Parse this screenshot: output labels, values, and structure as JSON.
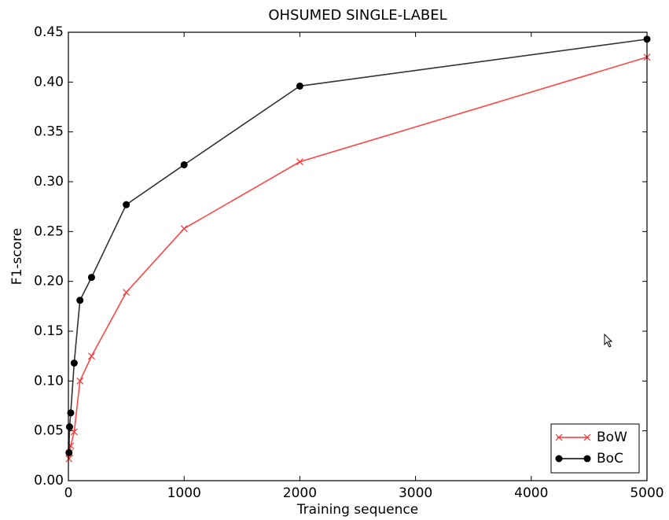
{
  "chart_data": {
    "type": "line",
    "title": "OHSUMED SINGLE-LABEL",
    "x_label": "Training sequence",
    "y_label": "F1-score",
    "x": [
      5,
      10,
      20,
      50,
      100,
      200,
      500,
      1000,
      2000,
      5000
    ],
    "series": [
      {
        "name": "BoW",
        "color": "#ff3333",
        "marker": "x",
        "values": [
          0.022,
          0.028,
          0.035,
          0.049,
          0.1,
          0.125,
          0.189,
          0.253,
          0.32,
          0.425
        ]
      },
      {
        "name": "BoC",
        "color": "#000000",
        "marker": "o",
        "values": [
          0.028,
          0.054,
          0.068,
          0.118,
          0.181,
          0.204,
          0.277,
          0.317,
          0.396,
          0.443
        ]
      }
    ],
    "xlim": [
      0,
      5000
    ],
    "xticks": [
      0,
      1000,
      2000,
      3000,
      4000,
      5000
    ],
    "ylim": [
      0,
      0.45
    ],
    "yticks": [
      {
        "value": 0,
        "label": "0.00"
      },
      {
        "value": 0.05,
        "label": "0.05"
      },
      {
        "value": 0.1,
        "label": "0.10"
      },
      {
        "value": 0.15,
        "label": "0.15"
      },
      {
        "value": 0.2,
        "label": "0.20"
      },
      {
        "value": 0.25,
        "label": "0.25"
      },
      {
        "value": 0.3,
        "label": "0.30"
      },
      {
        "value": 0.35,
        "label": "0.35"
      },
      {
        "value": 0.4,
        "label": "0.40"
      },
      {
        "value": 0.45,
        "label": "0.45"
      }
    ],
    "legend": "lower right",
    "grid": false
  }
}
